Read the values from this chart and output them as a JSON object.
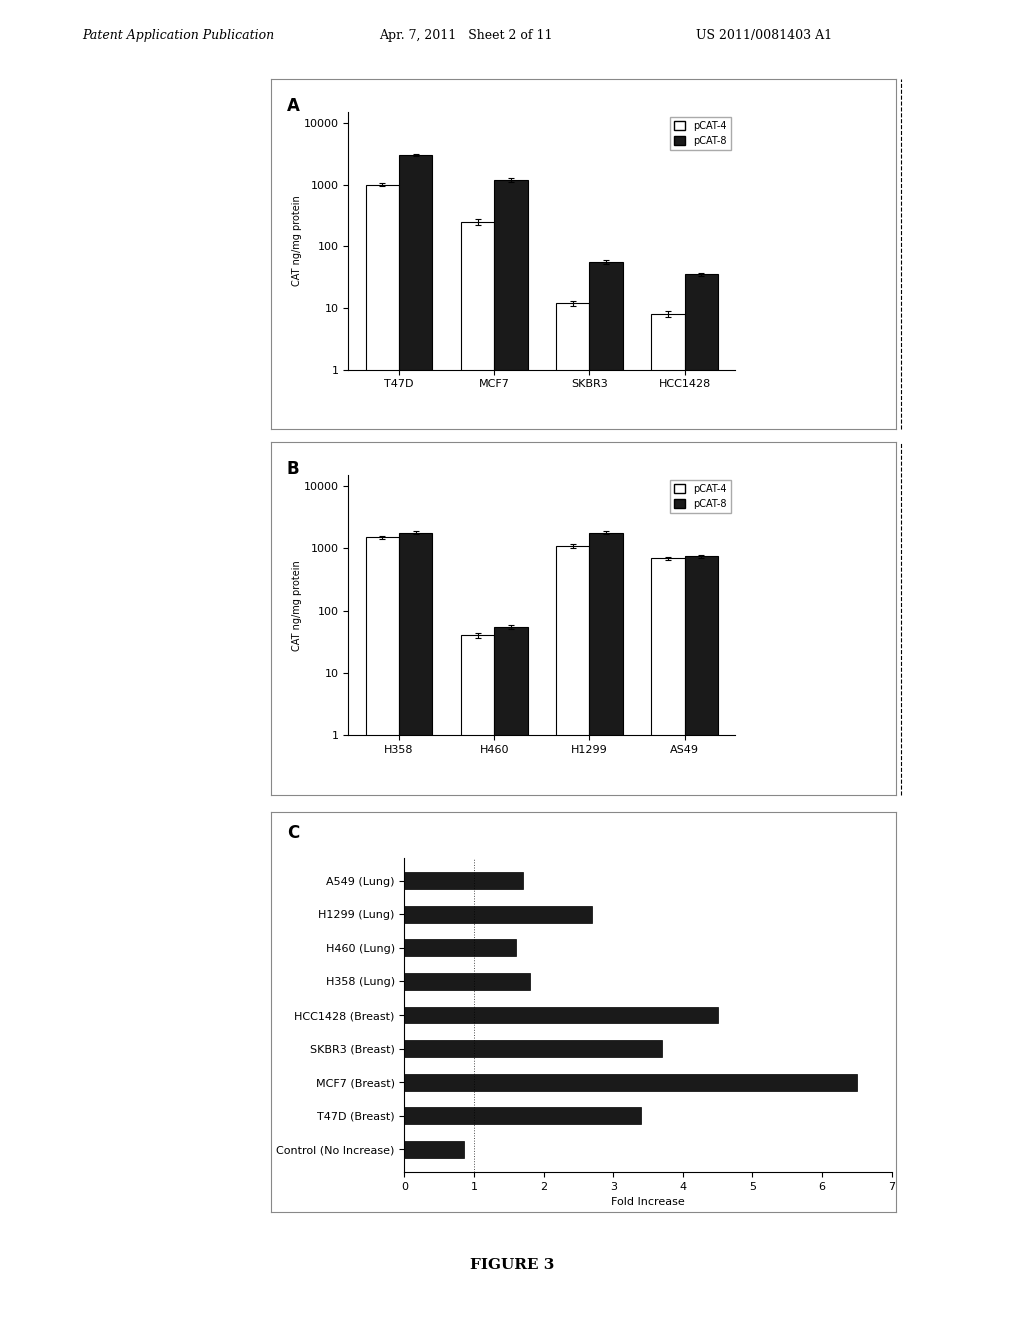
{
  "header_left": "Patent Application Publication",
  "header_mid": "Apr. 7, 2011   Sheet 2 of 11",
  "header_right": "US 2011/0081403 A1",
  "figure_label": "FIGURE 3",
  "panel_A": {
    "label": "A",
    "categories": [
      "T47D",
      "MCF7",
      "SKBR3",
      "HCC1428"
    ],
    "pCAT4": [
      1000,
      250,
      12,
      8
    ],
    "pCAT8": [
      3000,
      1200,
      55,
      35
    ],
    "pCAT4_err": [
      60,
      25,
      1.2,
      0.8
    ],
    "pCAT8_err": [
      120,
      80,
      4,
      2.5
    ],
    "ylabel": "CAT ng/mg protein",
    "yticks": [
      1,
      10,
      100,
      1000,
      10000
    ]
  },
  "panel_B": {
    "label": "B",
    "categories": [
      "H358",
      "H460",
      "H1299",
      "AS49"
    ],
    "pCAT4": [
      1500,
      40,
      1100,
      700
    ],
    "pCAT8": [
      1800,
      55,
      1800,
      750
    ],
    "pCAT4_err": [
      80,
      4,
      70,
      40
    ],
    "pCAT8_err": [
      100,
      5,
      100,
      45
    ],
    "ylabel": "CAT ng/mg protein",
    "yticks": [
      1,
      10,
      100,
      1000,
      10000
    ]
  },
  "panel_C": {
    "label": "C",
    "categories": [
      "A549 (Lung)",
      "H1299 (Lung)",
      "H460 (Lung)",
      "H358 (Lung)",
      "HCC1428 (Breast)",
      "SKBR3 (Breast)",
      "MCF7 (Breast)",
      "T47D (Breast)",
      "Control (No Increase)"
    ],
    "values": [
      1.7,
      2.7,
      1.6,
      1.8,
      4.5,
      3.7,
      6.5,
      3.4,
      0.85
    ],
    "xlabel": "Fold Increase",
    "xlim": [
      0,
      7
    ],
    "xticks": [
      0,
      1,
      2,
      3,
      4,
      5,
      6,
      7
    ]
  },
  "legend_pCAT4_label": "pCAT-4",
  "legend_pCAT8_label": "pCAT-8",
  "bar_white": "#FFFFFF",
  "bar_black": "#1a1a1a",
  "bar_edge": "#000000",
  "bg_color": "#FFFFFF",
  "panel_bg": "#FFFFFF",
  "text_color": "#000000",
  "font_size_axis": 7,
  "font_size_tick": 7,
  "font_size_header": 9
}
